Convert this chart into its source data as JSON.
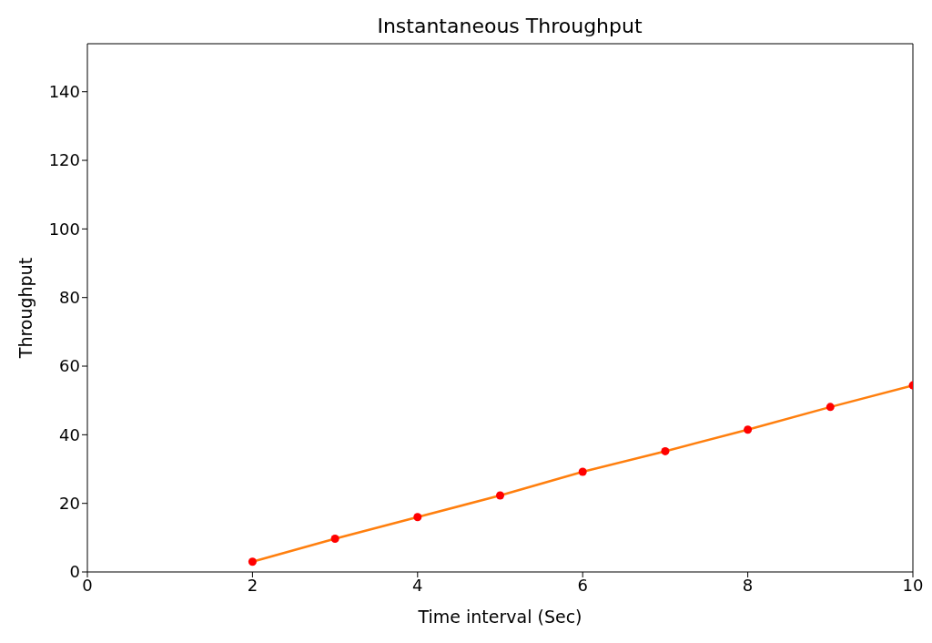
{
  "chart_data": {
    "type": "line",
    "title": "Instantaneous Throughput",
    "xlabel": "Time interval (Sec)",
    "ylabel": "Throughput",
    "x": [
      2,
      3,
      4,
      5,
      6,
      7,
      8,
      9,
      10
    ],
    "series": [
      {
        "color": "#ff7f0e",
        "marker": "none",
        "values": [
          3,
          9.7,
          16,
          22.3,
          29.2,
          35.2,
          41.5,
          48.1,
          54.4
        ]
      },
      {
        "type": "scatter",
        "color": "#ff0000",
        "marker": "circle",
        "values": [
          3,
          9.7,
          16,
          22.3,
          29.2,
          35.2,
          41.5,
          48.1,
          54.4
        ]
      }
    ],
    "xlim": [
      0,
      10
    ],
    "xticks": [
      0,
      2,
      4,
      6,
      8,
      10
    ],
    "ylim": [
      0,
      154
    ],
    "yticks": [
      0,
      20,
      40,
      60,
      80,
      100,
      120,
      140
    ],
    "grid": false,
    "legend": false
  }
}
